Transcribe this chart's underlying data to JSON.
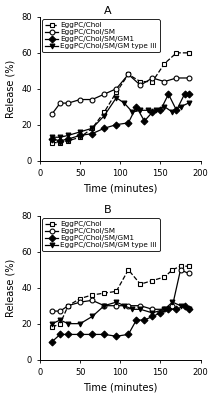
{
  "panel_A": {
    "title": "A",
    "series": [
      {
        "label": "EggPC/Chol",
        "marker": "s",
        "fillstyle": "none",
        "linestyle": "--",
        "x": [
          15,
          25,
          35,
          50,
          65,
          80,
          95,
          110,
          125,
          140,
          155,
          170,
          185
        ],
        "y": [
          10,
          10,
          11,
          13,
          18,
          27,
          38,
          48,
          44,
          44,
          54,
          60,
          60
        ]
      },
      {
        "label": "EggPC/Chol/SM",
        "marker": "o",
        "fillstyle": "none",
        "linestyle": "-",
        "x": [
          15,
          25,
          35,
          50,
          65,
          80,
          95,
          110,
          125,
          140,
          155,
          170,
          185
        ],
        "y": [
          26,
          32,
          32,
          34,
          34,
          37,
          40,
          48,
          42,
          46,
          44,
          46,
          46
        ]
      },
      {
        "label": "EggPC/Chol/SM/GM1",
        "marker": "D",
        "fillstyle": "full",
        "linestyle": "-",
        "x": [
          15,
          25,
          35,
          50,
          65,
          80,
          95,
          110,
          120,
          130,
          140,
          150,
          160,
          170,
          180,
          185
        ],
        "y": [
          12,
          11,
          12,
          14,
          15,
          18,
          20,
          21,
          30,
          22,
          27,
          28,
          37,
          28,
          37,
          37
        ]
      },
      {
        "label": "EggPC/Chol/SM/GM type III",
        "marker": "v",
        "fillstyle": "full",
        "linestyle": "-",
        "x": [
          15,
          25,
          35,
          50,
          65,
          80,
          95,
          105,
          115,
          125,
          135,
          145,
          155,
          165,
          175,
          185
        ],
        "y": [
          13,
          13,
          14,
          16,
          18,
          25,
          35,
          32,
          27,
          28,
          28,
          28,
          30,
          27,
          30,
          32
        ]
      }
    ],
    "ylabel": "Release (%)",
    "xlabel": "Time (minutes)",
    "ylim": [
      0,
      80
    ],
    "xlim": [
      0,
      200
    ],
    "yticks": [
      0,
      20,
      40,
      60,
      80
    ],
    "xticks": [
      0,
      50,
      100,
      150,
      200
    ]
  },
  "panel_B": {
    "title": "B",
    "series": [
      {
        "label": "EggPC/Chol",
        "marker": "s",
        "fillstyle": "none",
        "linestyle": "--",
        "x": [
          15,
          25,
          35,
          50,
          65,
          80,
          95,
          110,
          125,
          140,
          155,
          165,
          175,
          185
        ],
        "y": [
          18,
          20,
          30,
          34,
          36,
          37,
          38,
          50,
          42,
          44,
          46,
          50,
          52,
          52
        ]
      },
      {
        "label": "EggPC/Chol/SM",
        "marker": "o",
        "fillstyle": "none",
        "linestyle": "-",
        "x": [
          15,
          25,
          35,
          50,
          65,
          80,
          95,
          110,
          125,
          140,
          155,
          165,
          175,
          185
        ],
        "y": [
          27,
          27,
          30,
          32,
          33,
          30,
          30,
          30,
          30,
          28,
          28,
          30,
          50,
          48
        ]
      },
      {
        "label": "EggPC/Chol/SM/GM1",
        "marker": "D",
        "fillstyle": "full",
        "linestyle": "-",
        "x": [
          15,
          25,
          35,
          50,
          65,
          80,
          95,
          110,
          120,
          130,
          140,
          150,
          160,
          170,
          180,
          185
        ],
        "y": [
          10,
          14,
          14,
          14,
          14,
          14,
          13,
          14,
          22,
          22,
          24,
          26,
          28,
          28,
          30,
          28
        ]
      },
      {
        "label": "EggPC/Chol/SM/GM type III",
        "marker": "v",
        "fillstyle": "full",
        "linestyle": "-",
        "x": [
          15,
          25,
          35,
          50,
          65,
          80,
          95,
          105,
          115,
          125,
          140,
          155,
          165,
          175,
          185
        ],
        "y": [
          20,
          22,
          20,
          20,
          24,
          30,
          32,
          30,
          28,
          28,
          26,
          28,
          32,
          30,
          28
        ]
      }
    ],
    "ylabel": "Release (%)",
    "xlabel": "Time (minutes)",
    "ylim": [
      0,
      80
    ],
    "xlim": [
      0,
      200
    ],
    "yticks": [
      0,
      20,
      40,
      60,
      80
    ],
    "xticks": [
      0,
      50,
      100,
      150,
      200
    ]
  },
  "markersize": 3.5,
  "linewidth": 0.9,
  "fontsize_label": 7,
  "fontsize_tick": 6,
  "fontsize_legend": 5.2,
  "fontsize_title": 8
}
